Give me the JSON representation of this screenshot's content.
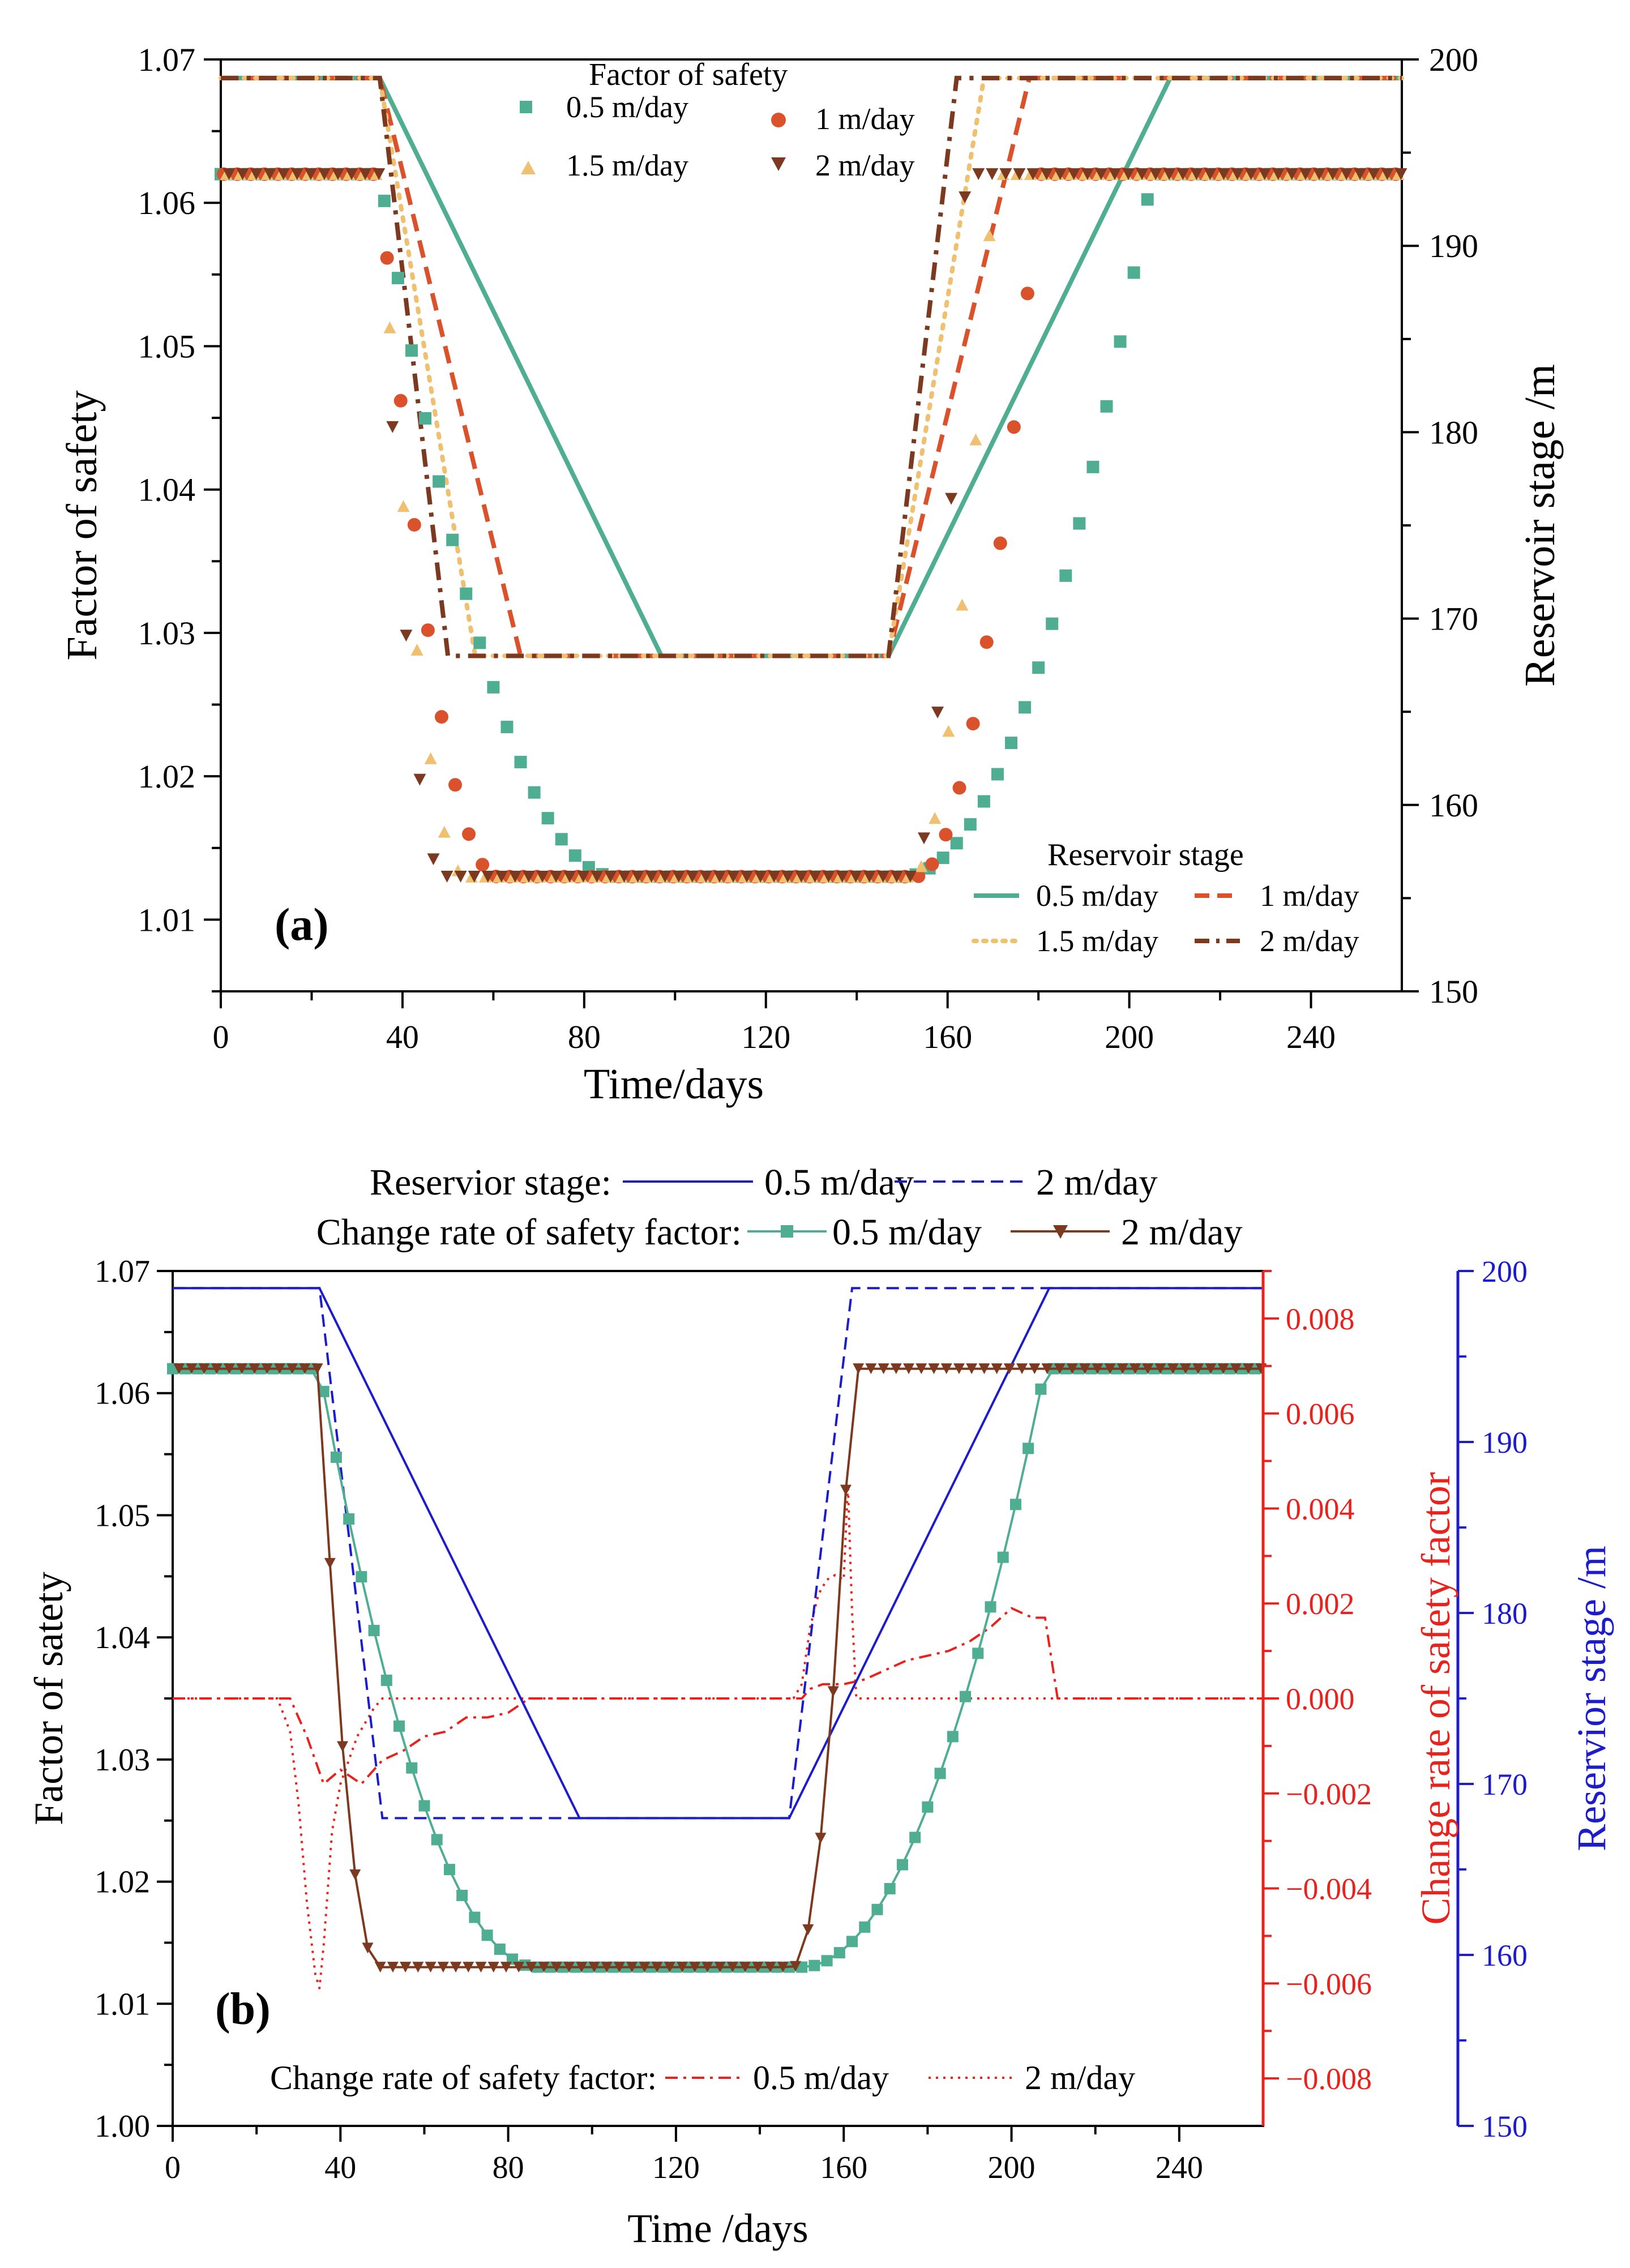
{
  "colors": {
    "teal": "#4fae91",
    "orange_red": "#d9522c",
    "light_orange": "#eec070",
    "brown": "#7b3a1f",
    "blue": "#1c1ccc",
    "red": "#e8231e",
    "black": "#000000"
  },
  "chart_data": [
    {
      "id": "a",
      "type": "scatter+line",
      "panel_label": "(a)",
      "xlabel": "Time/days",
      "ylabel_left": "Factor of safety",
      "ylabel_right": "Reservoir stage /m",
      "xlim": [
        0,
        260
      ],
      "ylim_left": [
        1.005,
        1.07
      ],
      "ylim_right": [
        150,
        200
      ],
      "x_ticks": [
        0,
        40,
        80,
        120,
        160,
        200,
        240
      ],
      "y_left_ticks": [
        1.01,
        1.02,
        1.03,
        1.04,
        1.05,
        1.06,
        1.07
      ],
      "y_left_tick_labels": [
        "1.01",
        "1.02",
        "1.03",
        "1.04",
        "1.05",
        "1.06",
        "1.07"
      ],
      "y_right_ticks": [
        150,
        160,
        170,
        180,
        190,
        200
      ],
      "legend_fos": {
        "title": "Factor of safety",
        "entries": [
          "0.5 m/day",
          "1 m/day",
          "1.5 m/day",
          "2 m/day"
        ]
      },
      "legend_stage": {
        "title": "Reservoir stage",
        "entries": [
          "0.5 m/day",
          "1 m/day",
          "1.5 m/day",
          "2 m/day"
        ]
      },
      "fos_series": [
        {
          "name": "0.5 m/day",
          "rate": 0.5,
          "marker": "square",
          "color": "#4fae91",
          "base": 1.062,
          "min": 1.013,
          "drop_start": 35,
          "drop_end": 87,
          "rise_start": 150,
          "rise_end": 205
        },
        {
          "name": "1 m/day",
          "rate": 1.0,
          "marker": "circle",
          "color": "#d9522c",
          "base": 1.062,
          "min": 1.013,
          "drop_start": 35,
          "drop_end": 61,
          "rise_start": 153,
          "rise_end": 180
        },
        {
          "name": "1.5 m/day",
          "rate": 1.5,
          "marker": "triangle-up",
          "color": "#eec070",
          "base": 1.062,
          "min": 1.013,
          "drop_start": 35,
          "drop_end": 54,
          "rise_start": 152,
          "rise_end": 170
        },
        {
          "name": "2 m/day",
          "rate": 2.0,
          "marker": "triangle-down",
          "color": "#7b3a1f",
          "base": 1.062,
          "min": 1.013,
          "drop_start": 35,
          "drop_end": 49,
          "rise_start": 152,
          "rise_end": 164
        }
      ],
      "stage_series": [
        {
          "name": "0.5 m/day",
          "color": "#4fae91",
          "dash": "solid",
          "x": [
            0,
            35,
            97,
            147,
            209,
            260
          ],
          "y": [
            199,
            199,
            168,
            168,
            199,
            199
          ]
        },
        {
          "name": "1 m/day",
          "color": "#d9522c",
          "dash": "dash",
          "x": [
            0,
            35,
            66,
            147,
            178,
            260
          ],
          "y": [
            199,
            199,
            168,
            168,
            199,
            199
          ]
        },
        {
          "name": "1.5 m/day",
          "color": "#eec070",
          "dash": "dot",
          "x": [
            0,
            35,
            56,
            147,
            168,
            260
          ],
          "y": [
            199,
            199,
            168,
            168,
            199,
            199
          ]
        },
        {
          "name": "2 m/day",
          "color": "#7b3a1f",
          "dash": "dashdot",
          "x": [
            0,
            35,
            50,
            147,
            162,
            260
          ],
          "y": [
            199,
            199,
            168,
            168,
            199,
            199
          ]
        }
      ]
    },
    {
      "id": "b",
      "type": "scatter+line",
      "panel_label": "(b)",
      "xlabel": "Time /days",
      "ylabel_left": "Factor of satety",
      "ylabel_mid": "Change rate of safety factor",
      "ylabel_right": "Reservior stage /m",
      "xlim": [
        0,
        260
      ],
      "ylim_left": [
        1.0,
        1.07
      ],
      "ylim_mid": [
        -0.009,
        0.009
      ],
      "ylim_right": [
        150,
        200
      ],
      "x_ticks": [
        0,
        40,
        80,
        120,
        160,
        200,
        240
      ],
      "y_left_ticks": [
        1.0,
        1.01,
        1.02,
        1.03,
        1.04,
        1.05,
        1.06,
        1.07
      ],
      "y_left_tick_labels": [
        "1.00",
        "1.01",
        "1.02",
        "1.03",
        "1.04",
        "1.05",
        "1.06",
        "1.07"
      ],
      "y_mid_ticks": [
        -0.008,
        -0.006,
        -0.004,
        -0.002,
        0.0,
        0.002,
        0.004,
        0.006,
        0.008
      ],
      "y_mid_tick_labels": [
        "−0.008",
        "−0.006",
        "−0.004",
        "−0.002",
        "0.000",
        "0.002",
        "0.004",
        "0.006",
        "0.008"
      ],
      "y_right_ticks": [
        150,
        160,
        170,
        180,
        190,
        200
      ],
      "legend_top_row1": {
        "label": "Reservior stage:",
        "entries": [
          "0.5 m/day",
          "2 m/day"
        ]
      },
      "legend_top_row2": {
        "label": "Change rate of safety factor:",
        "entries": [
          "0.5 m/day",
          "2 m/day"
        ]
      },
      "legend_bottom": {
        "label": "Change rate of safety factor:",
        "entries": [
          "0.5 m/day",
          "2 m/day"
        ]
      },
      "fos_series": [
        {
          "name": "0.5 m/day",
          "marker": "square",
          "color": "#4fae91",
          "base": 1.062,
          "min": 1.013,
          "drop_start": 35,
          "drop_end": 87,
          "rise_start": 150,
          "rise_end": 208
        },
        {
          "name": "2 m/day",
          "marker": "triangle-down",
          "color": "#7b3a1f",
          "base": 1.062,
          "min": 1.013,
          "drop_start": 35,
          "drop_end": 49,
          "rise_start": 148,
          "rise_end": 162
        }
      ],
      "stage_series": [
        {
          "name": "0.5 m/day",
          "color": "#1c1ccc",
          "dash": "solid",
          "x": [
            0,
            35,
            97,
            147,
            209,
            260
          ],
          "y": [
            199,
            199,
            168,
            168,
            199,
            199
          ]
        },
        {
          "name": "2 m/day",
          "color": "#1c1ccc",
          "dash": "dash",
          "x": [
            0,
            35,
            50,
            147,
            162,
            260
          ],
          "y": [
            199,
            199,
            168,
            168,
            199,
            199
          ]
        }
      ],
      "rate_series": [
        {
          "name": "0.5 m/day",
          "color": "#e8231e",
          "dash": "dashdot",
          "x": [
            0,
            28,
            32,
            36,
            40,
            45,
            50,
            55,
            60,
            65,
            70,
            75,
            80,
            85,
            87,
            90,
            150,
            152,
            155,
            160,
            165,
            170,
            175,
            180,
            185,
            190,
            195,
            200,
            205,
            208,
            211,
            260
          ],
          "y": [
            0,
            0,
            -0.0008,
            -0.0018,
            -0.0015,
            -0.0018,
            -0.0013,
            -0.0011,
            -0.0008,
            -0.0007,
            -0.0004,
            -0.0004,
            -0.0003,
            0.0,
            0.0,
            0.0,
            0.0,
            0.0002,
            0.0003,
            0.0003,
            0.0004,
            0.0006,
            0.0008,
            0.0009,
            0.001,
            0.0012,
            0.0015,
            0.0019,
            0.0017,
            0.0017,
            0.0,
            0.0
          ]
        },
        {
          "name": "2 m/day",
          "color": "#e8231e",
          "dash": "dot",
          "x": [
            0,
            25,
            28,
            30,
            32,
            34,
            35,
            36,
            38,
            40,
            44,
            48,
            50,
            52,
            148,
            150,
            152,
            154,
            156,
            158,
            160,
            161,
            162,
            163,
            260
          ],
          "y": [
            0,
            0,
            -0.0007,
            -0.0022,
            -0.0043,
            -0.0058,
            -0.0061,
            -0.0052,
            -0.0028,
            -0.0018,
            -0.0008,
            -0.0002,
            0.0,
            0.0,
            0.0,
            0.0003,
            0.0015,
            0.0022,
            0.0025,
            0.0026,
            0.0025,
            0.0045,
            0.0018,
            0.0,
            0.0
          ]
        }
      ]
    }
  ]
}
